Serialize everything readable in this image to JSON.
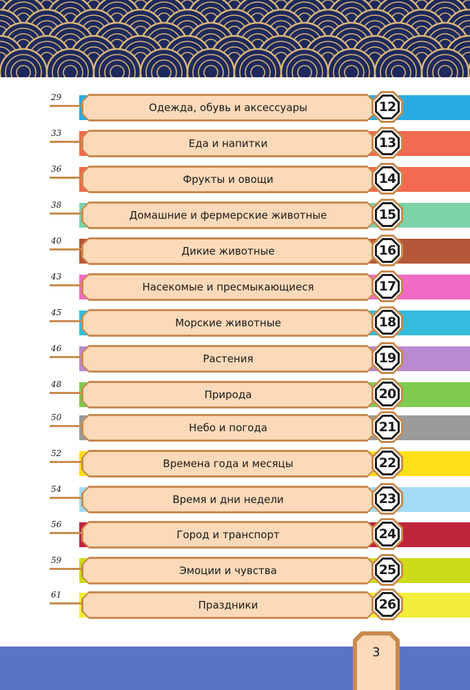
{
  "colors": {
    "header_navy": "#1f2a5c",
    "header_gold": "#d9b77a",
    "plate_fill": "#fcd9b8",
    "plate_border": "#c98a4e",
    "footer_blue": "#5b73c4"
  },
  "toc": {
    "items": [
      {
        "page": "29",
        "title": "Одежда, обувь и аксессуары",
        "number": "12",
        "color": "#29abe2"
      },
      {
        "page": "33",
        "title": "Еда и напитки",
        "number": "13",
        "color": "#f26a4f"
      },
      {
        "page": "36",
        "title": "Фрукты и овощи",
        "number": "14",
        "color": "#f26a4f"
      },
      {
        "page": "38",
        "title": "Домашние и фермерские животные",
        "number": "15",
        "color": "#7dd3a8"
      },
      {
        "page": "40",
        "title": "Дикие животные",
        "number": "16",
        "color": "#b5583a"
      },
      {
        "page": "43",
        "title": "Насекомые и пресмыкающиеся",
        "number": "17",
        "color": "#f06bc5"
      },
      {
        "page": "45",
        "title": "Морские животные",
        "number": "18",
        "color": "#34bcdc"
      },
      {
        "page": "46",
        "title": "Растения",
        "number": "19",
        "color": "#b98ad0"
      },
      {
        "page": "48",
        "title": "Природа",
        "number": "20",
        "color": "#7ecb4f"
      },
      {
        "page": "50",
        "title": "Небо и погода",
        "number": "21",
        "color": "#9b9b9b"
      },
      {
        "page": "52",
        "title": "Времена года и месяцы",
        "number": "22",
        "color": "#ffde1a"
      },
      {
        "page": "54",
        "title": "Время и дни недели",
        "number": "23",
        "color": "#a3dcf7"
      },
      {
        "page": "56",
        "title": "Город и транспорт",
        "number": "24",
        "color": "#c0243c"
      },
      {
        "page": "59",
        "title": "Эмоции и чувства",
        "number": "25",
        "color": "#cddc1a"
      },
      {
        "page": "61",
        "title": "Праздники",
        "number": "26",
        "color": "#f2ee3a"
      }
    ]
  },
  "footer": {
    "page_number": "3"
  }
}
